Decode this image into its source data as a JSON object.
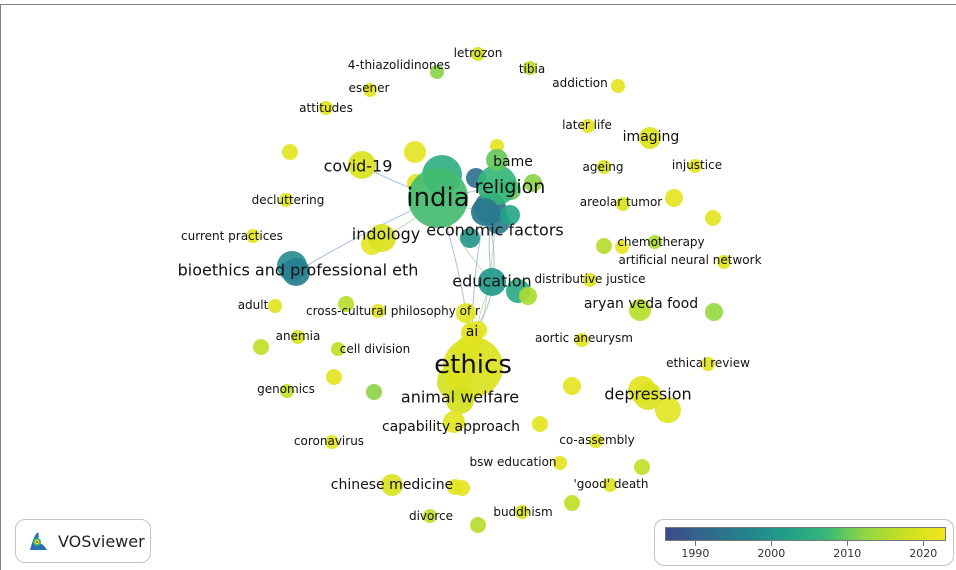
{
  "app": {
    "name": "VOSviewer"
  },
  "overlay_colors": [
    "#3e4a89",
    "#31688e",
    "#26828e",
    "#1f9e89",
    "#35b779",
    "#90d743",
    "#c8e020",
    "#f4e61e"
  ],
  "legend": {
    "ticks": [
      "1990",
      "2000",
      "2010",
      "2020"
    ],
    "tick_values": [
      1990,
      2000,
      2010,
      2020
    ],
    "range": [
      1986,
      2023
    ]
  },
  "network": {
    "nodes": [
      {
        "label": "india",
        "year": 2008,
        "size": "xl"
      },
      {
        "label": "religion",
        "year": 2007,
        "size": "l"
      },
      {
        "label": "bame",
        "year": 2010,
        "size": "s"
      },
      {
        "label": "economic factors",
        "year": 1995,
        "size": "m"
      },
      {
        "label": "education",
        "year": 2001,
        "size": "m"
      },
      {
        "label": "ethics",
        "year": 2020,
        "size": "xl"
      },
      {
        "label": "animal welfare",
        "year": 2019,
        "size": "m"
      },
      {
        "label": "bioethics and professional eth",
        "year": 1996,
        "size": "m"
      },
      {
        "label": "covid-19",
        "year": 2020,
        "size": "m"
      },
      {
        "label": "indology",
        "year": 2020,
        "size": "m"
      },
      {
        "label": "ai",
        "year": 2021,
        "size": "s"
      },
      {
        "label": "depression",
        "year": 2020,
        "size": "m"
      },
      {
        "label": "imaging",
        "year": 2020,
        "size": "s"
      },
      {
        "label": "chinese medicine",
        "year": 2020,
        "size": "s"
      },
      {
        "label": "letrozon",
        "year": 2019,
        "size": "xs"
      },
      {
        "label": "tibia",
        "year": 2017,
        "size": "xs"
      },
      {
        "label": "4-thiazolidinones",
        "year": 2012,
        "size": "xs"
      },
      {
        "label": "addiction",
        "year": 2021,
        "size": "xs"
      },
      {
        "label": "esener",
        "year": 2021,
        "size": "xs"
      },
      {
        "label": "attitudes",
        "year": 2021,
        "size": "xs"
      },
      {
        "label": "later life",
        "year": 2021,
        "size": "xs"
      },
      {
        "label": "ageing",
        "year": 2020,
        "size": "xs"
      },
      {
        "label": "injustice",
        "year": 2021,
        "size": "xs"
      },
      {
        "label": "decluttering",
        "year": 2021,
        "size": "xs"
      },
      {
        "label": "areolar tumor",
        "year": 2020,
        "size": "xs"
      },
      {
        "label": "current practices",
        "year": 2021,
        "size": "xs"
      },
      {
        "label": "chemotherapy",
        "year": 2015,
        "size": "xs"
      },
      {
        "label": "artificial neural network",
        "year": 2021,
        "size": "xs"
      },
      {
        "label": "distributive justice",
        "year": 2021,
        "size": "xs"
      },
      {
        "label": "aryan veda food",
        "year": 2016,
        "size": "s"
      },
      {
        "label": "adult",
        "year": 2021,
        "size": "xs"
      },
      {
        "label": "cross-cultural philosophy of r",
        "year": 2021,
        "size": "xs"
      },
      {
        "label": "anemia",
        "year": 2020,
        "size": "xs"
      },
      {
        "label": "cell division",
        "year": 2017,
        "size": "xs"
      },
      {
        "label": "aortic aneurysm",
        "year": 2021,
        "size": "xs"
      },
      {
        "label": "ethical review",
        "year": 2021,
        "size": "xs"
      },
      {
        "label": "genomics",
        "year": 2017,
        "size": "xs"
      },
      {
        "label": "capability approach",
        "year": 2021,
        "size": "s"
      },
      {
        "label": "coronavirus",
        "year": 2021,
        "size": "xs"
      },
      {
        "label": "co-assembly",
        "year": 2021,
        "size": "xs"
      },
      {
        "label": "bsw education",
        "year": 2021,
        "size": "xs"
      },
      {
        "label": "'good' death",
        "year": 2020,
        "size": "xs"
      },
      {
        "label": "buddhism",
        "year": 2020,
        "size": "xs"
      },
      {
        "label": "divorce",
        "year": 2017,
        "size": "xs"
      }
    ]
  }
}
